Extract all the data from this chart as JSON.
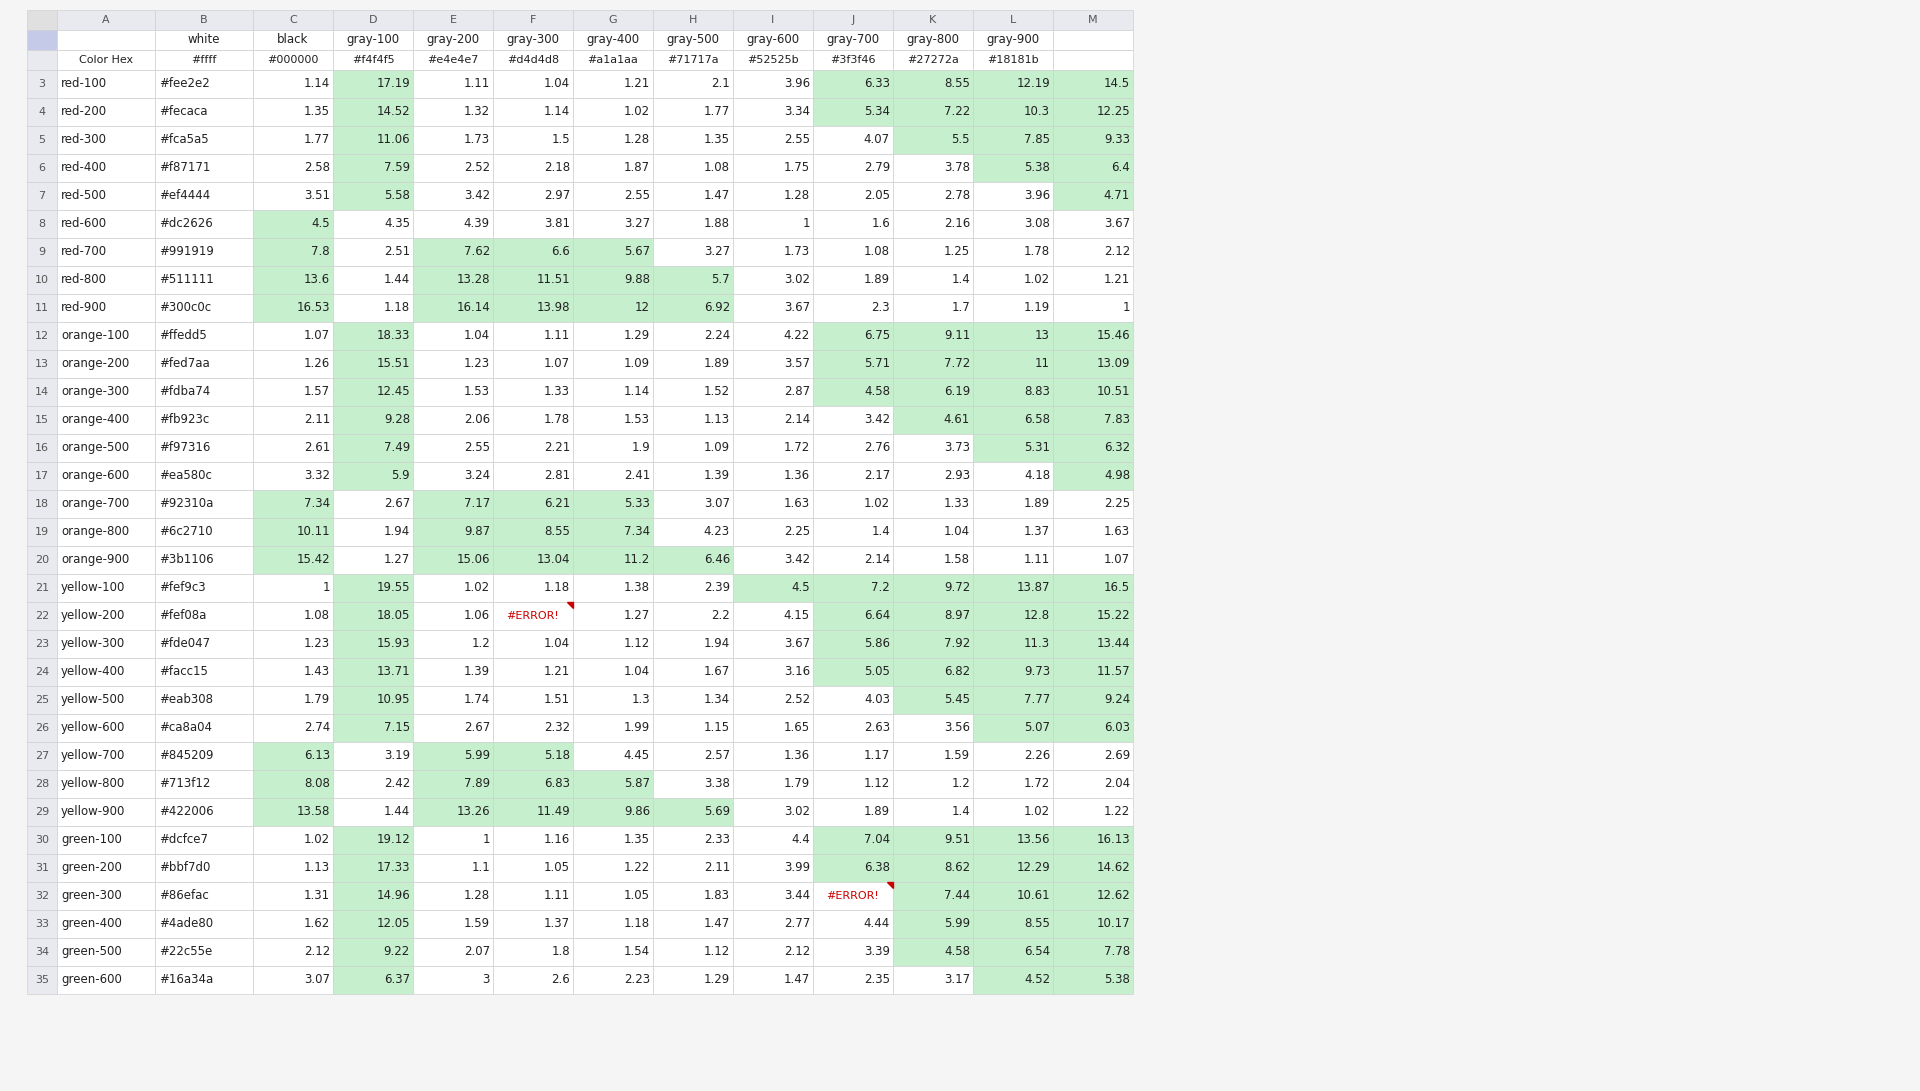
{
  "col_headers_row1": [
    "",
    "",
    "white",
    "black",
    "gray-100",
    "gray-200",
    "gray-300",
    "gray-400",
    "gray-500",
    "gray-600",
    "gray-700",
    "gray-800",
    "gray-900"
  ],
  "col_headers_row2": [
    "",
    "Color Hex",
    "#ffff",
    "#000000",
    "#f4f4f5",
    "#e4e4e7",
    "#d4d4d8",
    "#a1a1aa",
    "#71717a",
    "#52525b",
    "#3f3f46",
    "#27272a",
    "#18181b"
  ],
  "col_letters": [
    "",
    "A",
    "B",
    "C",
    "D",
    "E",
    "F",
    "G",
    "H",
    "I",
    "J",
    "K",
    "L",
    "M"
  ],
  "rows": [
    {
      "label": "red-100",
      "hex": "#fee2e2",
      "values": [
        1.14,
        17.19,
        1.11,
        1.04,
        1.21,
        2.1,
        3.96,
        6.33,
        8.55,
        12.19,
        14.5
      ]
    },
    {
      "label": "red-200",
      "hex": "#fecaca",
      "values": [
        1.35,
        14.52,
        1.32,
        1.14,
        1.02,
        1.77,
        3.34,
        5.34,
        7.22,
        10.3,
        12.25
      ]
    },
    {
      "label": "red-300",
      "hex": "#fca5a5",
      "values": [
        1.77,
        11.06,
        1.73,
        1.5,
        1.28,
        1.35,
        2.55,
        4.07,
        5.5,
        7.85,
        9.33
      ]
    },
    {
      "label": "red-400",
      "hex": "#f87171",
      "values": [
        2.58,
        7.59,
        2.52,
        2.18,
        1.87,
        1.08,
        1.75,
        2.79,
        3.78,
        5.38,
        6.4
      ]
    },
    {
      "label": "red-500",
      "hex": "#ef4444",
      "values": [
        3.51,
        5.58,
        3.42,
        2.97,
        2.55,
        1.47,
        1.28,
        2.05,
        2.78,
        3.96,
        4.71
      ]
    },
    {
      "label": "red-600",
      "hex": "#dc2626",
      "values": [
        4.5,
        4.35,
        4.39,
        3.81,
        3.27,
        1.88,
        1.0,
        1.6,
        2.16,
        3.08,
        3.67
      ]
    },
    {
      "label": "red-700",
      "hex": "#991919",
      "values": [
        7.8,
        2.51,
        7.62,
        6.6,
        5.67,
        3.27,
        1.73,
        1.08,
        1.25,
        1.78,
        2.12
      ]
    },
    {
      "label": "red-800",
      "hex": "#511111",
      "values": [
        13.6,
        1.44,
        13.28,
        11.51,
        9.88,
        5.7,
        3.02,
        1.89,
        1.4,
        1.02,
        1.21
      ]
    },
    {
      "label": "red-900",
      "hex": "#300c0c",
      "values": [
        16.53,
        1.18,
        16.14,
        13.98,
        12.0,
        6.92,
        3.67,
        2.3,
        1.7,
        1.19,
        1.0
      ]
    },
    {
      "label": "orange-100",
      "hex": "#ffedd5",
      "values": [
        1.07,
        18.33,
        1.04,
        1.11,
        1.29,
        2.24,
        4.22,
        6.75,
        9.11,
        13.0,
        15.46
      ]
    },
    {
      "label": "orange-200",
      "hex": "#fed7aa",
      "values": [
        1.26,
        15.51,
        1.23,
        1.07,
        1.09,
        1.89,
        3.57,
        5.71,
        7.72,
        11.0,
        13.09
      ]
    },
    {
      "label": "orange-300",
      "hex": "#fdba74",
      "values": [
        1.57,
        12.45,
        1.53,
        1.33,
        1.14,
        1.52,
        2.87,
        4.58,
        6.19,
        8.83,
        10.51
      ]
    },
    {
      "label": "orange-400",
      "hex": "#fb923c",
      "values": [
        2.11,
        9.28,
        2.06,
        1.78,
        1.53,
        1.13,
        2.14,
        3.42,
        4.61,
        6.58,
        7.83
      ]
    },
    {
      "label": "orange-500",
      "hex": "#f97316",
      "values": [
        2.61,
        7.49,
        2.55,
        2.21,
        1.9,
        1.09,
        1.72,
        2.76,
        3.73,
        5.31,
        6.32
      ]
    },
    {
      "label": "orange-600",
      "hex": "#ea580c",
      "values": [
        3.32,
        5.9,
        3.24,
        2.81,
        2.41,
        1.39,
        1.36,
        2.17,
        2.93,
        4.18,
        4.98
      ]
    },
    {
      "label": "orange-700",
      "hex": "#92310a",
      "values": [
        7.34,
        2.67,
        7.17,
        6.21,
        5.33,
        3.07,
        1.63,
        1.02,
        1.33,
        1.89,
        2.25
      ]
    },
    {
      "label": "orange-800",
      "hex": "#6c2710",
      "values": [
        10.11,
        1.94,
        9.87,
        8.55,
        7.34,
        4.23,
        2.25,
        1.4,
        1.04,
        1.37,
        1.63
      ]
    },
    {
      "label": "orange-900",
      "hex": "#3b1106",
      "values": [
        15.42,
        1.27,
        15.06,
        13.04,
        11.2,
        6.46,
        3.42,
        2.14,
        1.58,
        1.11,
        1.07
      ]
    },
    {
      "label": "yellow-100",
      "hex": "#fef9c3",
      "values": [
        1.0,
        19.55,
        1.02,
        1.18,
        1.38,
        2.39,
        4.5,
        7.2,
        9.72,
        13.87,
        16.5
      ]
    },
    {
      "label": "yellow-200",
      "hex": "#fef08a",
      "values": [
        1.08,
        18.05,
        1.06,
        "#ERROR!",
        1.27,
        2.2,
        4.15,
        6.64,
        8.97,
        12.8,
        15.22
      ]
    },
    {
      "label": "yellow-300",
      "hex": "#fde047",
      "values": [
        1.23,
        15.93,
        1.2,
        1.04,
        1.12,
        1.94,
        3.67,
        5.86,
        7.92,
        11.3,
        13.44
      ]
    },
    {
      "label": "yellow-400",
      "hex": "#facc15",
      "values": [
        1.43,
        13.71,
        1.39,
        1.21,
        1.04,
        1.67,
        3.16,
        5.05,
        6.82,
        9.73,
        11.57
      ]
    },
    {
      "label": "yellow-500",
      "hex": "#eab308",
      "values": [
        1.79,
        10.95,
        1.74,
        1.51,
        1.3,
        1.34,
        2.52,
        4.03,
        5.45,
        7.77,
        9.24
      ]
    },
    {
      "label": "yellow-600",
      "hex": "#ca8a04",
      "values": [
        2.74,
        7.15,
        2.67,
        2.32,
        1.99,
        1.15,
        1.65,
        2.63,
        3.56,
        5.07,
        6.03
      ]
    },
    {
      "label": "yellow-700",
      "hex": "#845209",
      "values": [
        6.13,
        3.19,
        5.99,
        5.18,
        4.45,
        2.57,
        1.36,
        1.17,
        1.59,
        2.26,
        2.69
      ]
    },
    {
      "label": "yellow-800",
      "hex": "#713f12",
      "values": [
        8.08,
        2.42,
        7.89,
        6.83,
        5.87,
        3.38,
        1.79,
        1.12,
        1.2,
        1.72,
        2.04
      ]
    },
    {
      "label": "yellow-900",
      "hex": "#422006",
      "values": [
        13.58,
        1.44,
        13.26,
        11.49,
        9.86,
        5.69,
        3.02,
        1.89,
        1.4,
        1.02,
        1.22
      ]
    },
    {
      "label": "green-100",
      "hex": "#dcfce7",
      "values": [
        1.02,
        19.12,
        1.0,
        1.16,
        1.35,
        2.33,
        4.4,
        7.04,
        9.51,
        13.56,
        16.13
      ]
    },
    {
      "label": "green-200",
      "hex": "#bbf7d0",
      "values": [
        1.13,
        17.33,
        1.1,
        1.05,
        1.22,
        2.11,
        3.99,
        6.38,
        8.62,
        12.29,
        14.62
      ]
    },
    {
      "label": "green-300",
      "hex": "#86efac",
      "values": [
        1.31,
        14.96,
        1.28,
        1.11,
        1.05,
        1.83,
        3.44,
        "#ERROR!",
        7.44,
        10.61,
        12.62
      ]
    },
    {
      "label": "green-400",
      "hex": "#4ade80",
      "values": [
        1.62,
        12.05,
        1.59,
        1.37,
        1.18,
        1.47,
        2.77,
        4.44,
        5.99,
        8.55,
        10.17
      ]
    },
    {
      "label": "green-500",
      "hex": "#22c55e",
      "values": [
        2.12,
        9.22,
        2.07,
        1.8,
        1.54,
        1.12,
        2.12,
        3.39,
        4.58,
        6.54,
        7.78
      ]
    },
    {
      "label": "green-600",
      "hex": "#16a34a",
      "values": [
        3.07,
        6.37,
        3.0,
        2.6,
        2.23,
        1.29,
        1.47,
        2.35,
        3.17,
        4.52,
        5.38
      ]
    }
  ],
  "green_threshold": 4.5,
  "cell_bg_green": "#c6efce",
  "cell_bg_white": "#ffffff",
  "row_num_bg": "#e8eaf0",
  "row_num_selected_bg": "#c5cae9",
  "col_letter_bg": "#e8eaf0",
  "header_name_bg": "#ffffff",
  "grid_color": "#d0d0d0",
  "error_text_color": "#cc0000",
  "error_triangle_color": "#cc0000",
  "text_color_dark": "#222222",
  "text_color_rownum": "#555555",
  "fig_bg": "#f5f5f5"
}
